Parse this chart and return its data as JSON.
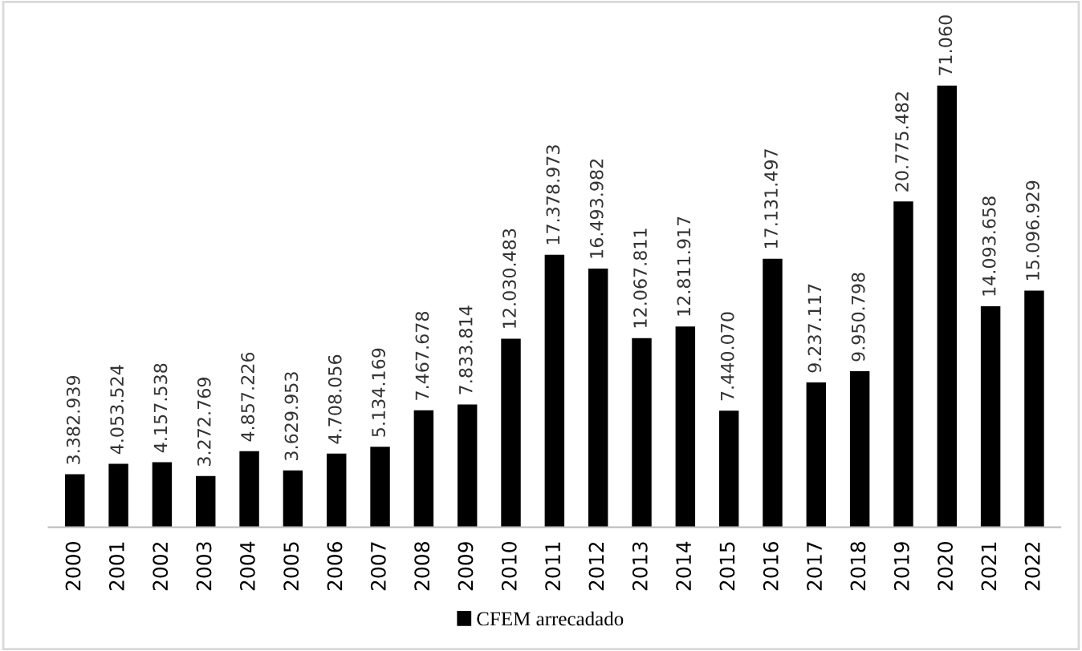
{
  "chart_data": {
    "type": "bar",
    "categories": [
      "2000",
      "2001",
      "2002",
      "2003",
      "2004",
      "2005",
      "2006",
      "2007",
      "2008",
      "2009",
      "2010",
      "2011",
      "2012",
      "2013",
      "2014",
      "2015",
      "2016",
      "2017",
      "2018",
      "2019",
      "2020",
      "2021",
      "2022"
    ],
    "series": [
      {
        "name": "CFEM arrecadado",
        "color": "#000000",
        "values": [
          3382939,
          4053524,
          4157538,
          3272769,
          4857226,
          3629953,
          4708056,
          5134169,
          7467678,
          7833814,
          12030483,
          17378973,
          16493982,
          12067811,
          12811917,
          7440070,
          17131497,
          9237117,
          9950798,
          20775482,
          28171060,
          14093658,
          15096929
        ],
        "value_labels": [
          "3.382.939",
          "4.053.524",
          "4.157.538",
          "3.272.769",
          "4.857.226",
          "3.629.953",
          "4.708.056",
          "5.134.169",
          "7.467.678",
          "7.833.814",
          "12.030.483",
          "17.378.973",
          "16.493.982",
          "12.067.811",
          "12.811.917",
          "7.440.070",
          "17.131.497",
          "9.237.117",
          "9.950.798",
          "20.775.482",
          null,
          "14.093.658",
          "15.096.929"
        ]
      }
    ],
    "annotations": [
      {
        "text": "71.060",
        "x": "2020",
        "y": 28171060
      }
    ],
    "legend": "bottom",
    "grid": false
  }
}
